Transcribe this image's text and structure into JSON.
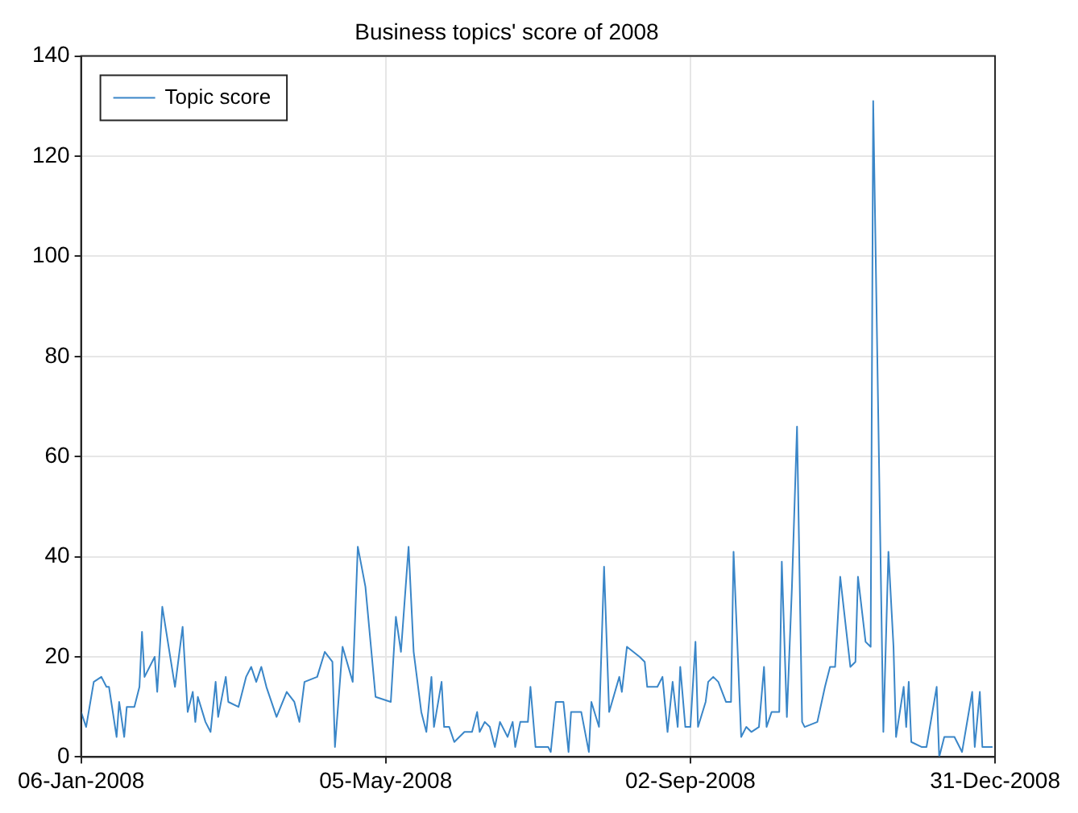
{
  "chart_data": {
    "type": "line",
    "title": "Business topics' score of 2008",
    "x": [
      "2008-01-06",
      "2008-01-08",
      "2008-01-11",
      "2008-01-14",
      "2008-01-16",
      "2008-01-17",
      "2008-01-20",
      "2008-01-21",
      "2008-01-23",
      "2008-01-24",
      "2008-01-27",
      "2008-01-29",
      "2008-01-30",
      "2008-01-31",
      "2008-02-04",
      "2008-02-05",
      "2008-02-07",
      "2008-02-12",
      "2008-02-15",
      "2008-02-17",
      "2008-02-19",
      "2008-02-20",
      "2008-02-21",
      "2008-02-24",
      "2008-02-26",
      "2008-02-28",
      "2008-02-29",
      "2008-03-03",
      "2008-03-04",
      "2008-03-08",
      "2008-03-11",
      "2008-03-13",
      "2008-03-15",
      "2008-03-17",
      "2008-03-19",
      "2008-03-23",
      "2008-03-27",
      "2008-03-30",
      "2008-04-01",
      "2008-04-03",
      "2008-04-08",
      "2008-04-11",
      "2008-04-14",
      "2008-04-15",
      "2008-04-18",
      "2008-04-22",
      "2008-04-24",
      "2008-04-27",
      "2008-05-01",
      "2008-05-07",
      "2008-05-09",
      "2008-05-11",
      "2008-05-14",
      "2008-05-16",
      "2008-05-19",
      "2008-05-21",
      "2008-05-23",
      "2008-05-24",
      "2008-05-27",
      "2008-05-28",
      "2008-05-30",
      "2008-06-01",
      "2008-06-03",
      "2008-06-05",
      "2008-06-08",
      "2008-06-10",
      "2008-06-11",
      "2008-06-13",
      "2008-06-15",
      "2008-06-17",
      "2008-06-19",
      "2008-06-22",
      "2008-06-24",
      "2008-06-25",
      "2008-06-27",
      "2008-06-30",
      "2008-07-01",
      "2008-07-03",
      "2008-07-08",
      "2008-07-09",
      "2008-07-11",
      "2008-07-14",
      "2008-07-16",
      "2008-07-17",
      "2008-07-21",
      "2008-07-24",
      "2008-07-25",
      "2008-07-28",
      "2008-07-30",
      "2008-08-01",
      "2008-08-05",
      "2008-08-06",
      "2008-08-08",
      "2008-08-13",
      "2008-08-15",
      "2008-08-16",
      "2008-08-20",
      "2008-08-22",
      "2008-08-24",
      "2008-08-26",
      "2008-08-28",
      "2008-08-29",
      "2008-08-31",
      "2008-09-02",
      "2008-09-04",
      "2008-09-05",
      "2008-09-08",
      "2008-09-09",
      "2008-09-11",
      "2008-09-13",
      "2008-09-16",
      "2008-09-18",
      "2008-09-19",
      "2008-09-22",
      "2008-09-24",
      "2008-09-26",
      "2008-09-29",
      "2008-10-01",
      "2008-10-02",
      "2008-10-04",
      "2008-10-07",
      "2008-10-08",
      "2008-10-10",
      "2008-10-12",
      "2008-10-14",
      "2008-10-16",
      "2008-10-17",
      "2008-10-22",
      "2008-10-25",
      "2008-10-27",
      "2008-10-29",
      "2008-10-31",
      "2008-11-04",
      "2008-11-06",
      "2008-11-07",
      "2008-11-10",
      "2008-11-12",
      "2008-11-13",
      "2008-11-17",
      "2008-11-19",
      "2008-11-21",
      "2008-11-22",
      "2008-11-25",
      "2008-11-26",
      "2008-11-27",
      "2008-11-28",
      "2008-12-02",
      "2008-12-04",
      "2008-12-08",
      "2008-12-09",
      "2008-12-11",
      "2008-12-15",
      "2008-12-18",
      "2008-12-22",
      "2008-12-23",
      "2008-12-25",
      "2008-12-26",
      "2008-12-30"
    ],
    "series": [
      {
        "name": "Topic score",
        "color": "#3a86c8",
        "values": [
          9,
          6,
          15,
          16,
          14,
          14,
          4,
          11,
          4,
          10,
          10,
          14,
          25,
          16,
          20,
          13,
          30,
          14,
          26,
          9,
          13,
          7,
          12,
          7,
          5,
          15,
          8,
          16,
          11,
          10,
          16,
          18,
          15,
          18,
          14,
          8,
          13,
          11,
          7,
          15,
          16,
          21,
          19,
          2,
          22,
          15,
          42,
          34,
          12,
          11,
          28,
          21,
          42,
          21,
          9,
          5,
          16,
          6,
          15,
          6,
          6,
          3,
          4,
          5,
          5,
          9,
          5,
          7,
          6,
          2,
          7,
          4,
          7,
          2,
          7,
          7,
          14,
          2,
          2,
          1,
          11,
          11,
          1,
          9,
          9,
          1,
          11,
          6,
          38,
          9,
          16,
          13,
          22,
          20,
          19,
          14,
          14,
          16,
          5,
          15,
          6,
          18,
          6,
          6,
          23,
          6,
          11,
          15,
          16,
          15,
          11,
          11,
          41,
          4,
          6,
          5,
          6,
          18,
          6,
          9,
          9,
          39,
          8,
          34,
          66,
          7,
          6,
          7,
          14,
          18,
          18,
          36,
          18,
          19,
          36,
          23,
          22,
          131,
          5,
          41,
          22,
          4,
          14,
          6,
          15,
          3,
          2,
          2,
          14,
          0,
          4,
          4,
          1,
          13,
          2,
          13,
          2,
          2
        ]
      }
    ],
    "xlim": [
      "2008-01-06",
      "2008-12-31"
    ],
    "xticks": [
      {
        "value": "2008-01-06",
        "label": "06-Jan-2008"
      },
      {
        "value": "2008-05-05",
        "label": "05-May-2008"
      },
      {
        "value": "2008-09-02",
        "label": "02-Sep-2008"
      },
      {
        "value": "2008-12-31",
        "label": "31-Dec-2008"
      }
    ],
    "ylim": [
      0,
      140
    ],
    "yticks": [
      0,
      20,
      40,
      60,
      80,
      100,
      120,
      140
    ],
    "grid": true,
    "legend": "top left",
    "line_style": "solid",
    "marker": "none"
  }
}
